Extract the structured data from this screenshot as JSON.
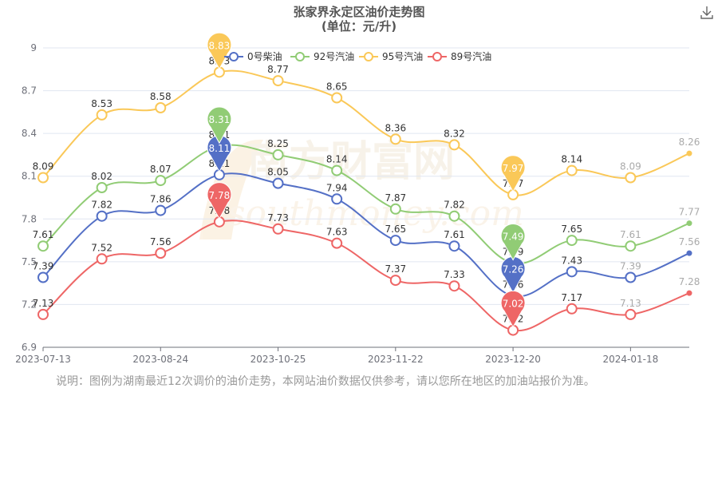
{
  "page": {
    "title": "张家界永定区油价走势图",
    "subtitle": "(单位：元/升)",
    "note": "说明：图例为湖南最近12次调价的油价走势，本网站油价数据仅供参考，请以您所在地区的加油站报价为准。",
    "watermark_cn": "南方财富网",
    "watermark_en": "southmoney.com",
    "download_icon": "download-icon"
  },
  "chart_data": {
    "type": "line",
    "title": "张家界永定区油价走势图",
    "subtitle": "(单位：元/升)",
    "xlabel": "",
    "ylabel": "",
    "ylim": [
      6.9,
      9
    ],
    "y_ticks": [
      "6.9",
      "7.2",
      "7.5",
      "7.8",
      "8.1",
      "8.4",
      "8.7",
      "9"
    ],
    "x_tick_labels": [
      "2023-07-13",
      "2023-08-24",
      "2023-10-25",
      "2023-11-22",
      "2023-12-20",
      "2024-01-18"
    ],
    "x_tick_at_point": [
      0,
      2,
      4,
      6,
      8,
      10
    ],
    "smooth": true,
    "legend_position": "top",
    "grid": "horizontal",
    "series": [
      {
        "name": "0号柴油",
        "color": "#5470c6",
        "values": [
          7.39,
          7.82,
          7.86,
          8.11,
          8.05,
          7.94,
          7.65,
          7.61,
          7.26,
          7.43,
          7.39,
          7.56
        ],
        "max_index": 3,
        "min_index": 8
      },
      {
        "name": "92号汽油",
        "color": "#91cc75",
        "values": [
          7.61,
          8.02,
          8.07,
          8.31,
          8.25,
          8.14,
          7.87,
          7.82,
          7.49,
          7.65,
          7.61,
          7.77
        ],
        "max_index": 3,
        "min_index": 8
      },
      {
        "name": "95号汽油",
        "color": "#fac858",
        "values": [
          8.09,
          8.53,
          8.58,
          8.83,
          8.77,
          8.65,
          8.36,
          8.32,
          7.97,
          8.14,
          8.09,
          8.26
        ],
        "max_index": 3,
        "min_index": 8
      },
      {
        "name": "89号汽油",
        "color": "#ee6666",
        "values": [
          7.13,
          7.52,
          7.56,
          7.78,
          7.73,
          7.63,
          7.37,
          7.33,
          7.02,
          7.17,
          7.13,
          7.28
        ],
        "max_index": 3,
        "min_index": 8
      }
    ]
  }
}
